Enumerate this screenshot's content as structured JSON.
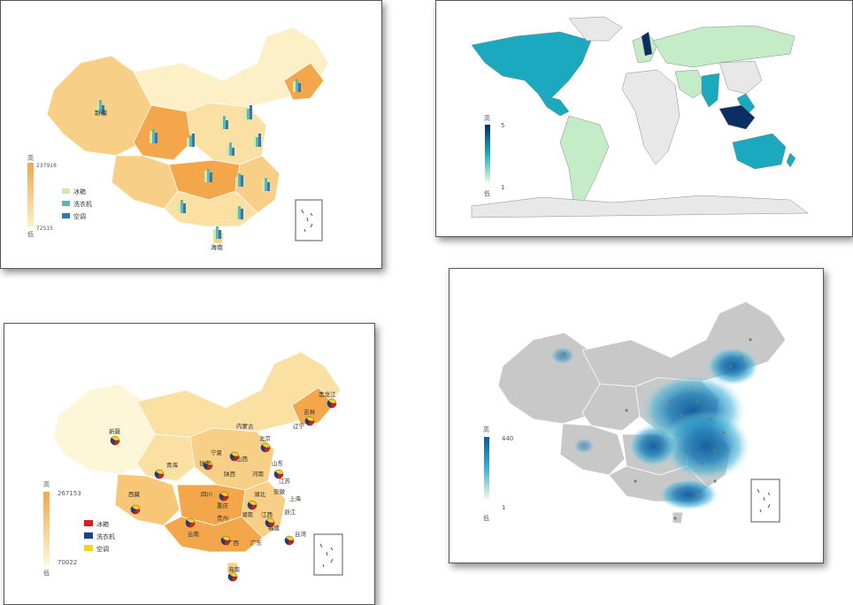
{
  "panel1": {
    "legend": {
      "high": "高",
      "max": "237918",
      "low": "低",
      "min": "72515"
    },
    "series": [
      "冰箱",
      "洗衣机",
      "空调"
    ],
    "colors": {
      "fridge": "#d4e8a8",
      "washer": "#5fb7ad",
      "ac": "#2f78b4",
      "fill_high": "#f3a64a",
      "fill_mid": "#f8cf86",
      "fill_low": "#fdf0c6"
    },
    "province_labels": [
      "新疆",
      "海南"
    ]
  },
  "panel2": {
    "legend": {
      "high": "高",
      "max": "5",
      "low": "低",
      "min": "1"
    },
    "colors": {
      "high": "#0b2e63",
      "mid": "#1aa9bf",
      "low": "#c3ecc7",
      "none": "#e8e8e8"
    }
  },
  "panel3": {
    "legend": {
      "high": "高",
      "max": "267153",
      "low": "低",
      "min": "70022"
    },
    "series": [
      "冰箱",
      "洗衣机",
      "空调"
    ],
    "colors": {
      "fridge": "#e01b1b",
      "washer": "#1b3f8f",
      "ac": "#f5d320"
    },
    "province_labels": [
      "黑龙江",
      "吉林",
      "内蒙古",
      "新疆",
      "辽宁",
      "北京",
      "宁夏",
      "山西",
      "山东",
      "青海",
      "甘肃",
      "陕西",
      "河南",
      "江苏",
      "西藏",
      "四川",
      "湖北",
      "安徽",
      "重庆",
      "上海",
      "贵州",
      "湖南",
      "江西",
      "浙江",
      "云南",
      "广西",
      "福建",
      "台湾",
      "广东",
      "海南"
    ]
  },
  "panel4": {
    "legend": {
      "high": "高",
      "max": "440",
      "low": "低",
      "min": "1"
    },
    "colors": {
      "base": "#c8c8c8",
      "heat_high": "#0b5b9c",
      "heat_mid": "#3bb0d6",
      "heat_low": "#bfe8e8"
    }
  }
}
